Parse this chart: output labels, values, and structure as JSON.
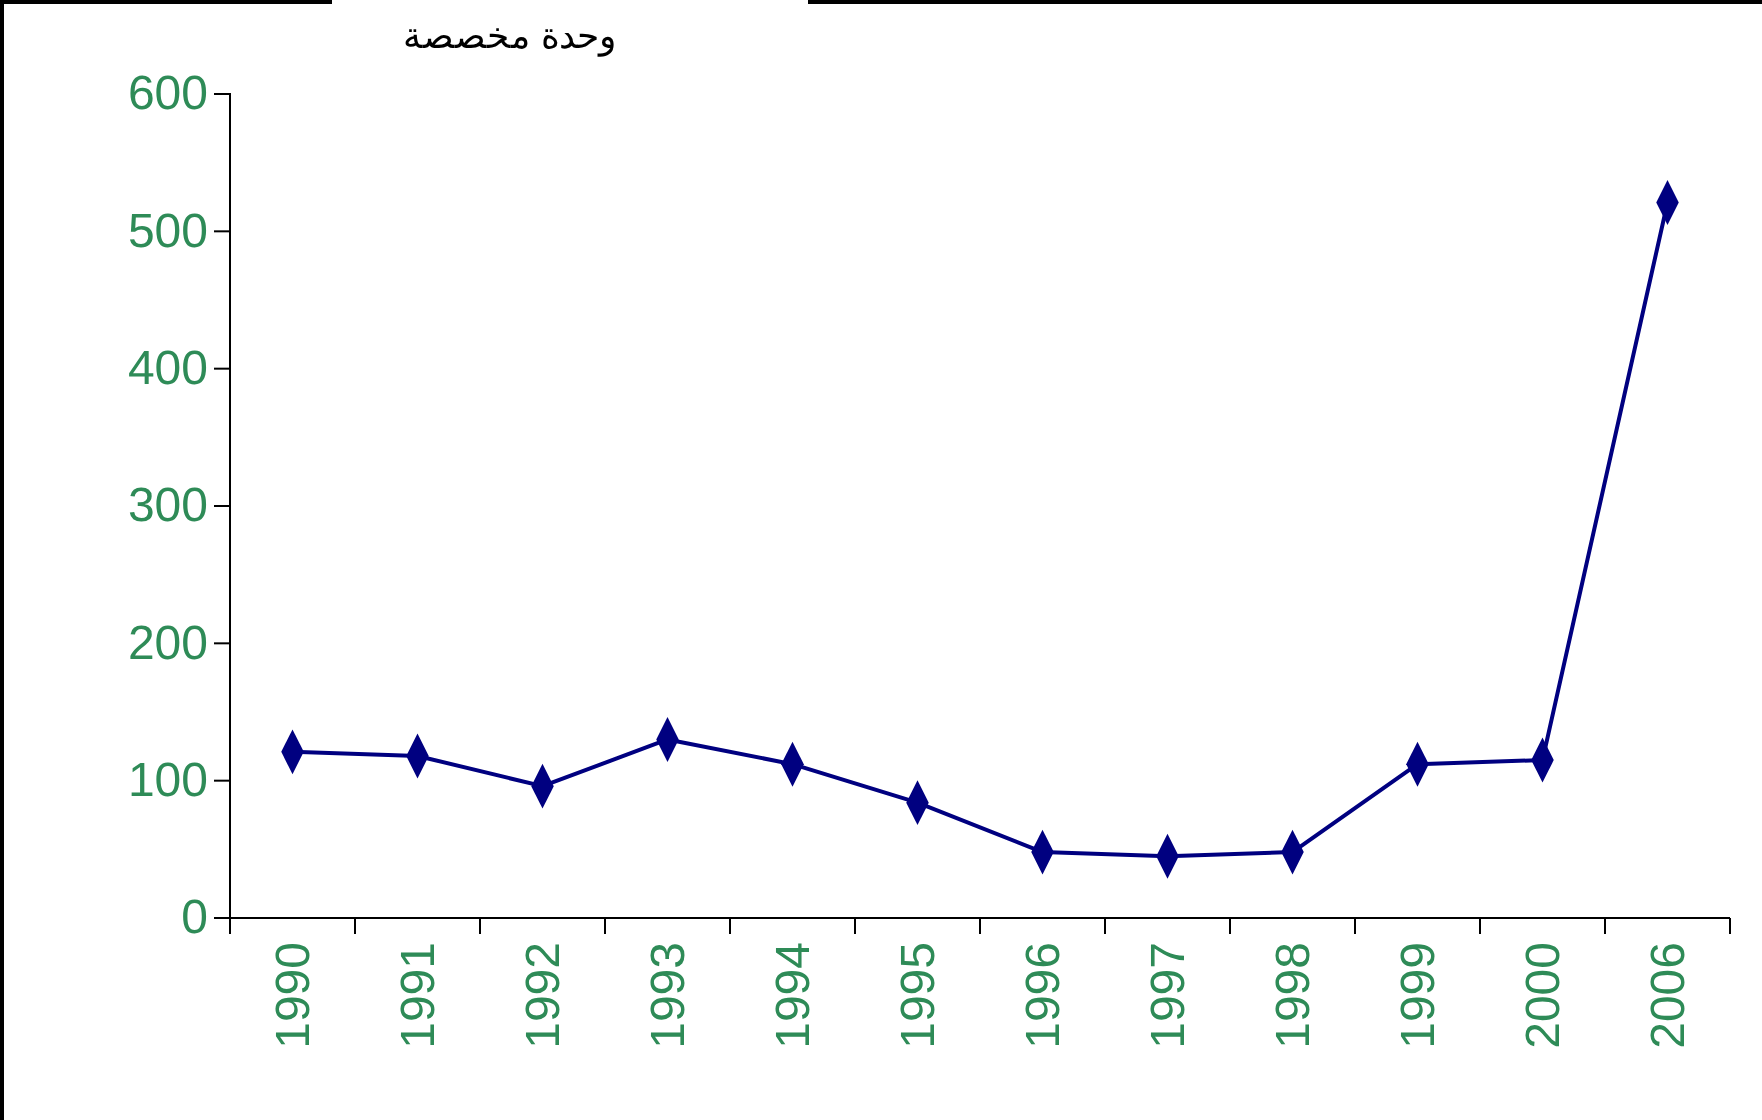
{
  "chart_data": {
    "type": "line",
    "ylabel": "وحدة مخصصة",
    "categories": [
      "1990",
      "1991",
      "1992",
      "1993",
      "1994",
      "1995",
      "1996",
      "1997",
      "1998",
      "1999",
      "2000",
      "2006"
    ],
    "series": [
      {
        "color": "#000080",
        "values": [
          121,
          118,
          96,
          130,
          112,
          84,
          48,
          45,
          48,
          112,
          115,
          521
        ]
      }
    ],
    "ylim": [
      0,
      600
    ],
    "yticks": [
      0,
      100,
      200,
      300,
      400,
      500,
      600
    ],
    "grid": false,
    "legend": false,
    "marker": "diamond",
    "line_style": "solid"
  }
}
